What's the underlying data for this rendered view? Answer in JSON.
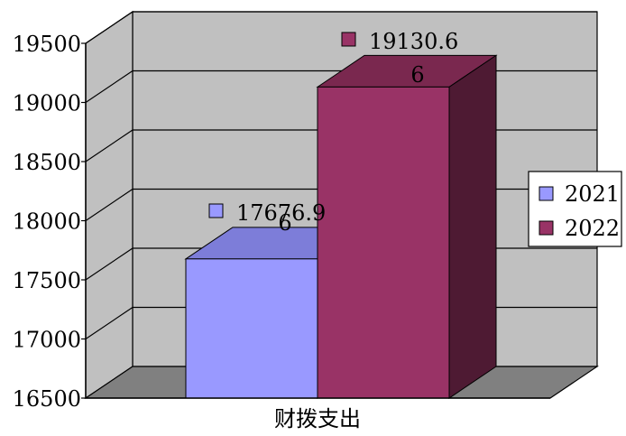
{
  "chart_data": {
    "type": "bar",
    "categories": [
      "财拨支出"
    ],
    "series": [
      {
        "name": "2021",
        "values": [
          17676.96
        ],
        "data_label_line1": "17676.9",
        "data_label_line2": "6",
        "color": "#9999ff",
        "top_color": "#7d7dd9",
        "side_color": "#5c5cb3"
      },
      {
        "name": "2022",
        "values": [
          19130.66
        ],
        "data_label_line1": "19130.6",
        "data_label_line2": "6",
        "color": "#993366",
        "top_color": "#7a284f",
        "side_color": "#4e1a33"
      }
    ],
    "y_ticks": [
      "16500",
      "17000",
      "17500",
      "18000",
      "18500",
      "19000",
      "19500"
    ],
    "ylim": [
      16500,
      19500
    ],
    "grid": true,
    "legend_position": "right",
    "wall_color": "#c0c0c0",
    "floor_color": "#808080"
  }
}
